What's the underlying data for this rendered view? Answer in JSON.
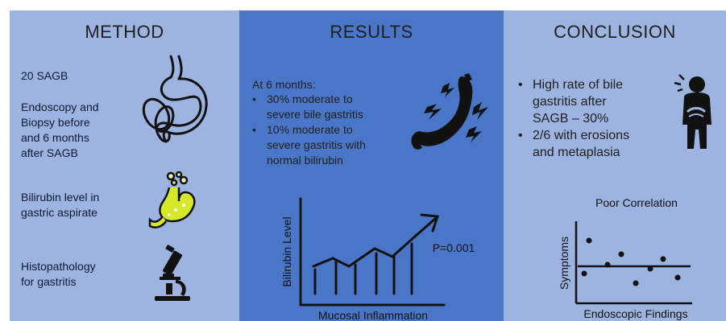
{
  "method": {
    "heading": "METHOD",
    "items": [
      "20 SAGB",
      "Endoscopy and\nBiopsy before\nand 6 months\nafter SAGB",
      "Bilirubin level in\ngastric aspirate",
      "Histopathology\nfor gastritis"
    ]
  },
  "results": {
    "heading": "RESULTS",
    "intro": "At 6 months:",
    "bullets": [
      "30% moderate to\nsevere bile gastritis",
      "10% moderate to\nsevere gastritis with\nnormal bilirubin"
    ],
    "chart": {
      "ylabel": "Bilirubin Level",
      "xlabel": "Mucosal Inflammation",
      "pvalue": "P=0.001"
    }
  },
  "conclusion": {
    "heading": "CONCLUSION",
    "bullets": [
      "High rate of bile\ngastritis after\nSAGB – 30%",
      "2/6 with erosions\nand metaplasia"
    ],
    "chart": {
      "title": "Poor Correlation",
      "ylabel": "Symptoms",
      "xlabel": "Endoscopic Findings"
    }
  },
  "colors": {
    "side_panel": "#9db3e0",
    "center_panel": "#4a76c8",
    "stomach_fill": "#d6e82a"
  },
  "icons": [
    "stomach-outline-icon",
    "stomach-bile-icon",
    "microscope-icon",
    "inflamed-stomach-icon",
    "stomach-pain-person-icon"
  ]
}
